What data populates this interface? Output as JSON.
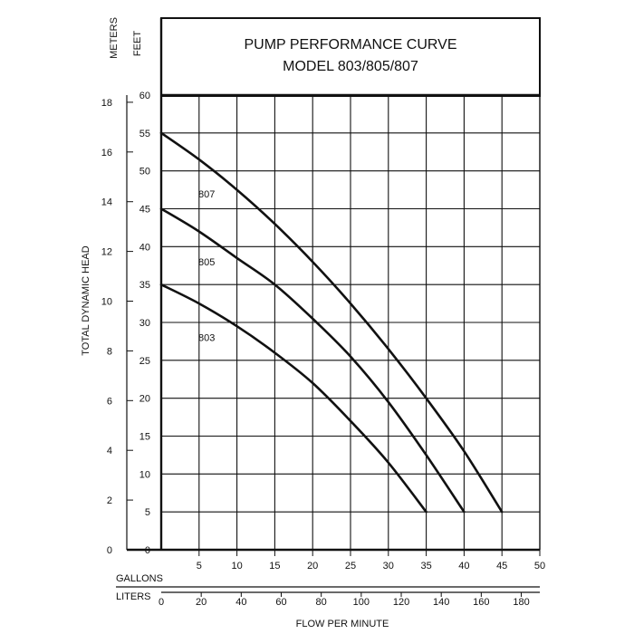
{
  "chart_data": {
    "type": "line",
    "title": "PUMP PERFORMANCE CURVE",
    "subtitle": "MODEL 803/805/807",
    "ylabel": "TOTAL DYNAMIC HEAD",
    "xlabel": "FLOW PER MINUTE",
    "y_unit_feet": "FEET",
    "y_unit_meters": "METERS",
    "x_unit_gallons": "GALLONS",
    "x_unit_liters": "LITERS",
    "xlim": [
      0,
      50
    ],
    "ylim": [
      0,
      60
    ],
    "grid": true,
    "feet_ticks": [
      "5",
      "10",
      "15",
      "20",
      "25",
      "30",
      "35",
      "40",
      "45",
      "50",
      "55",
      "60"
    ],
    "meter_ticks": [
      "2",
      "4",
      "6",
      "8",
      "10",
      "12",
      "14",
      "16",
      "18"
    ],
    "meter_tick_values": [
      2,
      4,
      6,
      8,
      10,
      12,
      14,
      16,
      18
    ],
    "gallon_ticks": [
      "5",
      "10",
      "15",
      "20",
      "25",
      "30",
      "35",
      "40",
      "45",
      "50"
    ],
    "liter_ticks": [
      "20",
      "40",
      "60",
      "80",
      "100",
      "120",
      "140",
      "160",
      "180"
    ],
    "liter_tick_values": [
      20,
      40,
      60,
      80,
      100,
      120,
      140,
      160,
      180
    ],
    "origin_feet": "0",
    "origin_meters": "0",
    "origin_liters": "0",
    "series": [
      {
        "name": "807",
        "x": [
          0,
          5,
          10,
          15,
          20,
          25,
          30,
          35,
          40,
          45
        ],
        "y": [
          55,
          51.5,
          47.5,
          43,
          38,
          32.5,
          26.5,
          20,
          13,
          5
        ]
      },
      {
        "name": "805",
        "x": [
          0,
          5,
          10,
          15,
          20,
          25,
          30,
          35,
          40
        ],
        "y": [
          45,
          42,
          38.5,
          35,
          30.5,
          25.5,
          19.5,
          12.5,
          5
        ]
      },
      {
        "name": "803",
        "x": [
          0,
          5,
          10,
          15,
          20,
          25,
          30,
          35
        ],
        "y": [
          35,
          32.5,
          29.5,
          26,
          22,
          17,
          11.5,
          5
        ]
      }
    ],
    "series_label_at": [
      [
        6,
        47
      ],
      [
        6,
        38
      ],
      [
        6,
        28
      ]
    ]
  }
}
